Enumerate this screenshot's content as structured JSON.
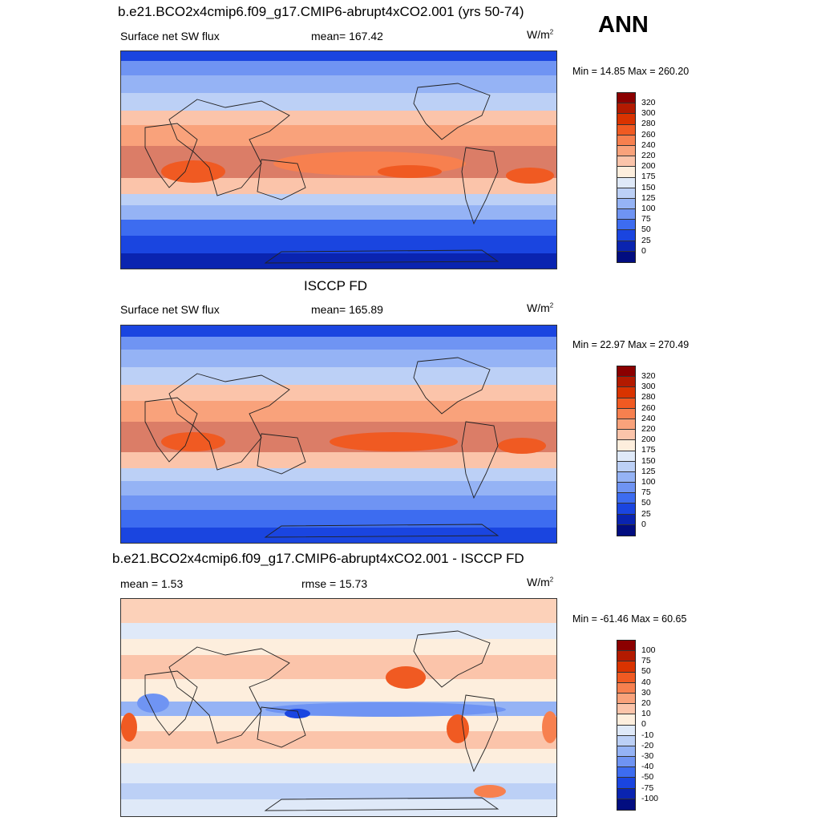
{
  "season": "ANN",
  "panels": [
    {
      "title": "b.e21.BCO2x4cmip6.f09_g17.CMIP6-abrupt4xCO2.001 (yrs 50-74)",
      "left_label": "Surface net SW flux",
      "center_label": "mean= 167.42",
      "units_base": "W/m",
      "units_exp": "2",
      "minmax": "Min =  14.85 Max = 260.20",
      "colorbar_labels": [
        "320",
        "300",
        "280",
        "260",
        "240",
        "220",
        "200",
        "175",
        "150",
        "125",
        "100",
        "75",
        "50",
        "25",
        "0"
      ]
    },
    {
      "title": "ISCCP FD",
      "left_label": "Surface net SW flux",
      "center_label": "mean= 165.89",
      "units_base": "W/m",
      "units_exp": "2",
      "minmax": "Min =  22.97 Max = 270.49",
      "colorbar_labels": [
        "320",
        "300",
        "280",
        "260",
        "240",
        "220",
        "200",
        "175",
        "150",
        "125",
        "100",
        "75",
        "50",
        "25",
        "0"
      ]
    },
    {
      "title": "b.e21.BCO2x4cmip6.f09_g17.CMIP6-abrupt4xCO2.001 - ISCCP FD",
      "left_label": "mean =   1.53",
      "center_label": "rmse =  15.73",
      "units_base": "W/m",
      "units_exp": "2",
      "minmax": "Min = -61.46 Max =  60.65",
      "colorbar_labels": [
        "100",
        "75",
        "50",
        "40",
        "30",
        "20",
        "10",
        "0",
        "-10",
        "-20",
        "-30",
        "-40",
        "-50",
        "-75",
        "-100"
      ]
    }
  ],
  "colors": {
    "abs_palette": [
      "#8b0000",
      "#b31a00",
      "#d93300",
      "#f05a22",
      "#f7804f",
      "#f9a27b",
      "#fbc4aa",
      "#fdeedd",
      "#dfe9f8",
      "#bcd0f6",
      "#95b3f5",
      "#6f94f3",
      "#3d6cf0",
      "#1a45e0",
      "#0a24b0",
      "#020d80"
    ],
    "diff_palette": [
      "#8b0000",
      "#b31a00",
      "#d93300",
      "#f05a22",
      "#f7804f",
      "#f9a27b",
      "#fbc4aa",
      "#fdeedd",
      "#dfe9f8",
      "#bcd0f6",
      "#95b3f5",
      "#6f94f3",
      "#3d6cf0",
      "#1a45e0",
      "#0a24b0",
      "#020d80"
    ],
    "coastline": "#222222"
  }
}
